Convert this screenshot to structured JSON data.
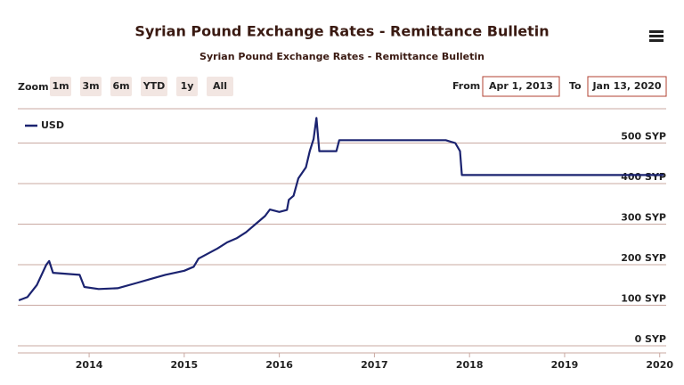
{
  "chart_data": {
    "type": "line",
    "title": "Syrian Pound Exchange Rates - Remittance Bulletin",
    "subtitle": "Syrian Pound Exchange Rates - Remittance Bulletin",
    "range_selector": {
      "label": "Zoom",
      "buttons": [
        "1m",
        "3m",
        "6m",
        "YTD",
        "1y",
        "All"
      ]
    },
    "from_label": "From",
    "from_value": "Apr 1, 2013",
    "to_label": "To",
    "to_value": "Jan 13, 2020",
    "xlim": [
      2013.25,
      2020.04
    ],
    "xticks": [
      2014,
      2015,
      2016,
      2017,
      2018,
      2019,
      2020
    ],
    "ylim": [
      0,
      600
    ],
    "yticks": [
      {
        "value": 0,
        "label": "0 SYP"
      },
      {
        "value": 100,
        "label": "100 SYP"
      },
      {
        "value": 200,
        "label": "200 SYP"
      },
      {
        "value": 300,
        "label": "300 SYP"
      },
      {
        "value": 400,
        "label": "400 SYP"
      },
      {
        "value": 500,
        "label": "500 SYP"
      }
    ],
    "grid": true,
    "legend_position": "top-left",
    "series": [
      {
        "name": "USD",
        "color": "#1b2370",
        "x": [
          2013.26,
          2013.35,
          2013.45,
          2013.55,
          2013.58,
          2013.62,
          2013.9,
          2013.95,
          2014.1,
          2014.3,
          2014.5,
          2014.65,
          2014.8,
          2015.0,
          2015.1,
          2015.15,
          2015.35,
          2015.45,
          2015.55,
          2015.65,
          2015.75,
          2015.85,
          2015.9,
          2016.0,
          2016.08,
          2016.1,
          2016.15,
          2016.2,
          2016.28,
          2016.32,
          2016.36,
          2016.39,
          2016.42,
          2016.6,
          2016.63,
          2017.75,
          2017.85,
          2017.9,
          2017.92,
          2020.04
        ],
        "values": [
          112,
          120,
          150,
          200,
          209,
          180,
          175,
          145,
          140,
          142,
          155,
          165,
          175,
          185,
          195,
          215,
          240,
          255,
          265,
          280,
          300,
          320,
          336,
          330,
          335,
          360,
          370,
          413,
          440,
          480,
          510,
          562,
          480,
          480,
          507,
          507,
          500,
          480,
          421,
          421
        ]
      }
    ]
  }
}
